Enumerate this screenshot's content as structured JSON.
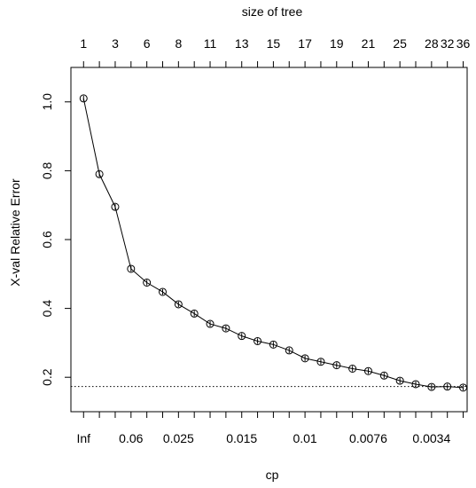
{
  "chart_data": {
    "type": "line",
    "title": "",
    "top_axis_label": "size of tree",
    "xlabel": "cp",
    "ylabel": "X-val Relative Error",
    "ylim": [
      0.1,
      1.1
    ],
    "y_ticks": [
      "0.2",
      "0.4",
      "0.6",
      "0.8",
      "1.0"
    ],
    "y_tick_values": [
      0.2,
      0.4,
      0.6,
      0.8,
      1.0
    ],
    "x_index": [
      1,
      2,
      3,
      4,
      5,
      6,
      7,
      8,
      9,
      10,
      11,
      12,
      13,
      14,
      15,
      16,
      17,
      18,
      19,
      20,
      21,
      22,
      23,
      24,
      25
    ],
    "top_ticks": [
      {
        "index": 1,
        "label": "1"
      },
      {
        "index": 3,
        "label": "3"
      },
      {
        "index": 5,
        "label": "6"
      },
      {
        "index": 7,
        "label": "8"
      },
      {
        "index": 9,
        "label": "11"
      },
      {
        "index": 11,
        "label": "13"
      },
      {
        "index": 13,
        "label": "15"
      },
      {
        "index": 15,
        "label": "17"
      },
      {
        "index": 17,
        "label": "19"
      },
      {
        "index": 19,
        "label": "21"
      },
      {
        "index": 21,
        "label": "25"
      },
      {
        "index": 23,
        "label": "28"
      },
      {
        "index": 24,
        "label": "32"
      },
      {
        "index": 25,
        "label": "36"
      }
    ],
    "bottom_ticks": [
      {
        "index": 1,
        "label": "Inf"
      },
      {
        "index": 4,
        "label": "0.06"
      },
      {
        "index": 7,
        "label": "0.025"
      },
      {
        "index": 11,
        "label": "0.015"
      },
      {
        "index": 15,
        "label": "0.01"
      },
      {
        "index": 19,
        "label": "0.0076"
      },
      {
        "index": 23,
        "label": "0.0034"
      }
    ],
    "series": [
      {
        "values": [
          1.01,
          0.79,
          0.695,
          0.515,
          0.475,
          0.448,
          0.412,
          0.385,
          0.355,
          0.342,
          0.32,
          0.305,
          0.295,
          0.278,
          0.255,
          0.245,
          0.235,
          0.225,
          0.218,
          0.205,
          0.19,
          0.18,
          0.172,
          0.173,
          0.17
        ],
        "se": [
          0.008,
          0.008,
          0.008,
          0.008,
          0.008,
          0.008,
          0.008,
          0.008,
          0.008,
          0.008,
          0.008,
          0.008,
          0.008,
          0.008,
          0.008,
          0.008,
          0.008,
          0.008,
          0.008,
          0.008,
          0.008,
          0.008,
          0.008,
          0.008,
          0.008
        ]
      }
    ],
    "reference_line": 0.173,
    "grid": false
  }
}
